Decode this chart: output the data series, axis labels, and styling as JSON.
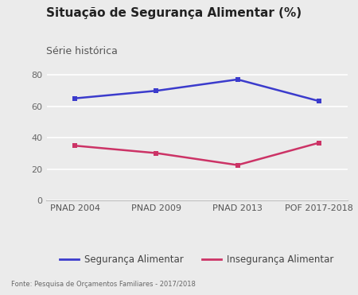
{
  "title": "Situação de Segurança Alimentar (%)",
  "subtitle": "Série histórica",
  "categories": [
    "PNAD 2004",
    "PNAD 2009",
    "PNAD 2013",
    "POF 2017-2018"
  ],
  "seguranca": [
    65.0,
    69.8,
    77.0,
    63.3
  ],
  "inseguranca": [
    34.9,
    30.2,
    22.6,
    36.7
  ],
  "seguranca_color": "#3b3bcc",
  "inseguranca_color": "#cc3366",
  "background_color": "#ebebeb",
  "ylim": [
    0,
    90
  ],
  "yticks": [
    0,
    20,
    40,
    60,
    80
  ],
  "legend_seguranca": "Segurança Alimentar",
  "legend_inseguranca": "Insegurança Alimentar",
  "fonte": "Fonte: Pesquisa de Orçamentos Familiares - 2017/2018",
  "title_fontsize": 11,
  "subtitle_fontsize": 9,
  "tick_fontsize": 8,
  "legend_fontsize": 8.5
}
